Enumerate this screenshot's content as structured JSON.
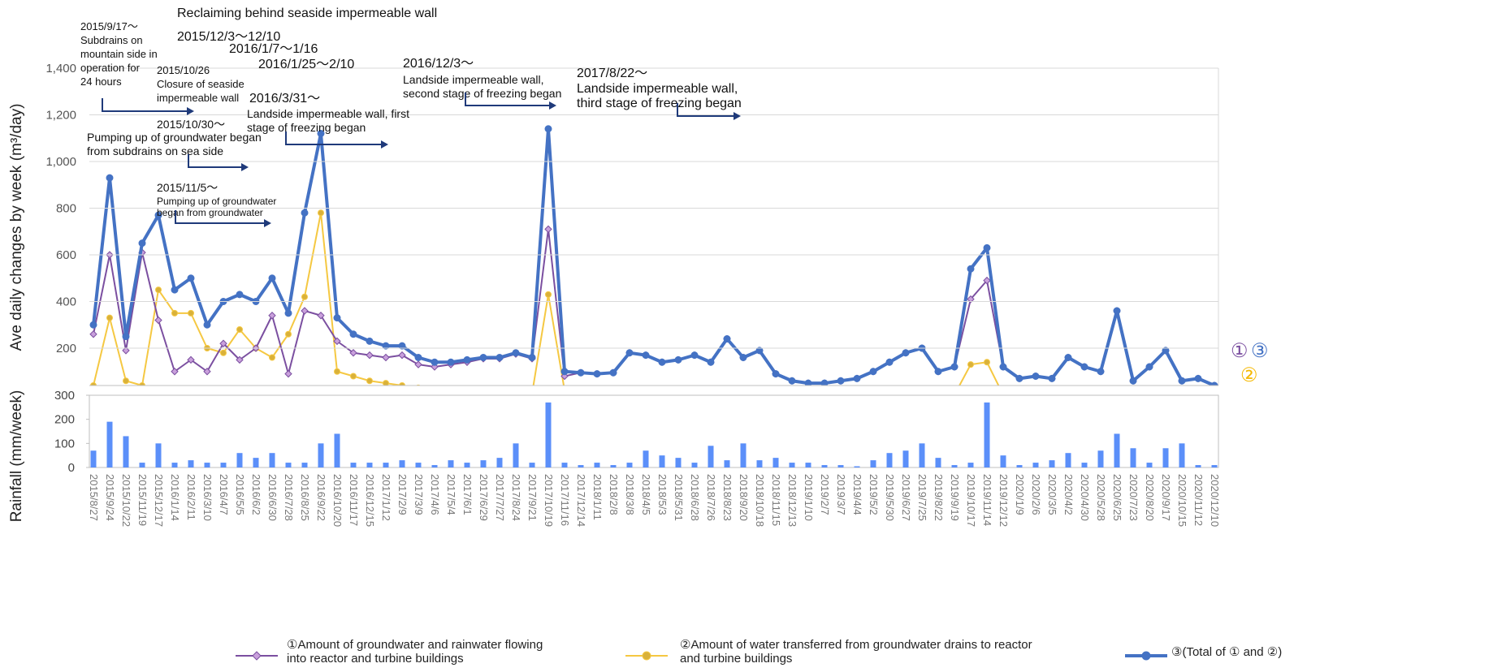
{
  "chart_data": {
    "type": "line",
    "ylabel": "Ave daily changes by week (m³/day)",
    "y2label": "Rainfall (mm/week)",
    "categories": [
      "2015/8/27",
      "2015/9/24",
      "2015/10/22",
      "2015/11/19",
      "2015/12/17",
      "2016/1/14",
      "2016/2/11",
      "2016/3/10",
      "2016/4/7",
      "2016/5/5",
      "2016/6/2",
      "2016/6/30",
      "2016/7/28",
      "2016/8/25",
      "2016/9/22",
      "2016/10/20",
      "2016/11/17",
      "2016/12/15",
      "2017/1/12",
      "2017/2/9",
      "2017/3/9",
      "2017/4/6",
      "2017/5/4",
      "2017/6/1",
      "2017/6/29",
      "2017/7/27",
      "2017/8/24",
      "2017/9/21",
      "2017/10/19",
      "2017/11/16",
      "2017/12/14",
      "2018/1/11",
      "2018/2/8",
      "2018/3/8",
      "2018/4/5",
      "2018/5/3",
      "2018/5/31",
      "2018/6/28",
      "2018/7/26",
      "2018/8/23",
      "2018/9/20",
      "2018/10/18",
      "2018/11/15",
      "2018/12/13",
      "2019/1/10",
      "2019/2/7",
      "2019/3/7",
      "2019/4/4",
      "2019/5/2",
      "2019/5/30",
      "2019/6/27",
      "2019/7/25",
      "2019/8/22",
      "2019/9/19",
      "2019/10/17",
      "2019/11/14",
      "2019/12/12",
      "2020/1/9",
      "2020/2/6",
      "2020/3/5",
      "2020/4/2",
      "2020/4/30",
      "2020/5/28",
      "2020/6/25",
      "2020/7/23",
      "2020/8/20",
      "2020/9/17",
      "2020/10/15",
      "2020/11/12",
      "2020/12/10"
    ],
    "series": [
      {
        "name": "①Amount of groundwater and rainwater flowing into reactor and turbine buildings",
        "color": "#7b4fa0",
        "marker_color": "#c9a0dc",
        "marker": "diamond",
        "values": [
          260,
          600,
          190,
          610,
          320,
          100,
          150,
          100,
          220,
          150,
          200,
          340,
          90,
          360,
          340,
          230,
          180,
          170,
          160,
          170,
          130,
          120,
          130,
          140,
          155,
          155,
          175,
          155,
          710,
          80,
          95,
          90,
          95,
          180,
          170,
          140,
          150,
          170,
          140,
          240,
          160,
          190,
          90,
          60,
          50,
          50,
          60,
          70,
          100,
          140,
          180,
          200,
          100,
          120,
          410,
          490,
          120,
          70,
          80,
          70,
          160,
          120,
          100,
          360,
          60,
          120,
          190,
          60,
          70,
          40
        ]
      },
      {
        "name": "②Amount of water transferred from groundwater drains to reactor and turbine buildings",
        "color": "#f5c842",
        "marker_color": "#d9b13a",
        "marker": "circle",
        "values": [
          40,
          330,
          60,
          40,
          450,
          350,
          350,
          200,
          180,
          280,
          200,
          160,
          260,
          420,
          780,
          100,
          80,
          60,
          50,
          40,
          30,
          20,
          10,
          10,
          5,
          5,
          5,
          5,
          430,
          20,
          0,
          0,
          0,
          0,
          0,
          0,
          0,
          0,
          0,
          0,
          0,
          0,
          0,
          0,
          0,
          0,
          0,
          0,
          0,
          0,
          0,
          0,
          0,
          0,
          130,
          140,
          0,
          0,
          0,
          0,
          0,
          0,
          0,
          0,
          0,
          0,
          0,
          0,
          0,
          0
        ]
      },
      {
        "name": "③(Total of ① and ②)",
        "color": "#4472c4",
        "marker_color": "#4472c4",
        "marker": "circle",
        "values": [
          300,
          930,
          250,
          650,
          770,
          450,
          500,
          300,
          400,
          430,
          400,
          500,
          350,
          780,
          1120,
          330,
          260,
          230,
          210,
          210,
          160,
          140,
          140,
          150,
          160,
          160,
          180,
          160,
          1140,
          100,
          95,
          90,
          95,
          180,
          170,
          140,
          150,
          170,
          140,
          240,
          160,
          190,
          90,
          60,
          50,
          50,
          60,
          70,
          100,
          140,
          180,
          200,
          100,
          120,
          540,
          630,
          120,
          70,
          80,
          70,
          160,
          120,
          100,
          360,
          60,
          120,
          190,
          60,
          70,
          40
        ]
      }
    ],
    "rainfall": {
      "type": "bar",
      "color": "#5b8ff9",
      "values": [
        70,
        190,
        130,
        20,
        100,
        20,
        30,
        20,
        20,
        60,
        40,
        60,
        20,
        20,
        100,
        140,
        20,
        20,
        20,
        30,
        20,
        10,
        30,
        20,
        30,
        40,
        100,
        20,
        270,
        20,
        10,
        20,
        10,
        20,
        70,
        50,
        40,
        20,
        90,
        30,
        100,
        30,
        40,
        20,
        20,
        10,
        10,
        5,
        30,
        60,
        70,
        100,
        40,
        10,
        20,
        270,
        50,
        10,
        20,
        30,
        60,
        20,
        70,
        140,
        80,
        20,
        80,
        100,
        10,
        10
      ]
    },
    "ylim": [
      40,
      1400
    ],
    "yticks": [
      200,
      400,
      600,
      800,
      {
        "value": 1000,
        "label": "1,000"
      },
      {
        "value": 1200,
        "label": "1,200"
      },
      {
        "value": 1400,
        "label": "1,400"
      }
    ],
    "y2lim": [
      0,
      300
    ],
    "y2ticks": [
      0,
      100,
      200,
      300
    ],
    "grid": true,
    "right_labels": [
      {
        "text": "①",
        "color": "#7b4fa0"
      },
      {
        "text": "③",
        "color": "#4472c4"
      },
      {
        "text": "②",
        "color": "#f5b800"
      }
    ],
    "annotations": [
      [
        "2015/9/17～",
        "Subdrains on",
        "mountain side in",
        "operation for",
        "24 hours"
      ],
      [
        "Reclaiming behind seaside impermeable wall"
      ],
      [
        "2015/12/3～12/10"
      ],
      [
        "2016/1/7～1/16"
      ],
      [
        "2016/1/25～2/10"
      ],
      [
        "2015/10/26",
        "Closure of seaside",
        "impermeable wall"
      ],
      [
        "2015/10/30～"
      ],
      [
        "Pumping up of groundwater began",
        "from subdrains on sea side"
      ],
      [
        "2015/11/5～"
      ],
      [
        "Pumping up of groundwater",
        "began from groundwater"
      ],
      [
        "2016/3/31～"
      ],
      [
        "Landside impermeable wall, first",
        "stage of freezing began"
      ],
      [
        "2016/12/3～"
      ],
      [
        "Landside impermeable wall,",
        "second stage of freezing began"
      ],
      [
        "2017/8/22～"
      ],
      [
        "Landside impermeable wall,",
        "third stage of freezing began"
      ]
    ]
  }
}
